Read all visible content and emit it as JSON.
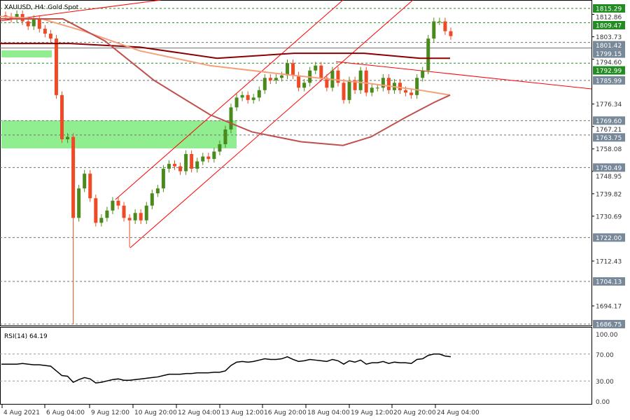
{
  "chart_data": {
    "type": "candlestick",
    "title": "XAUUSD, H4:  Gold Spot",
    "y_ticks": [
      "1812.86",
      "1803.73",
      "1794.60",
      "1776.34",
      "1767.21",
      "1758.08",
      "1748.95",
      "1739.82",
      "1730.69",
      "1712.43",
      "1694.17"
    ],
    "price_labels": [
      {
        "value": "1815.29",
        "color": "#228b22"
      },
      {
        "value": "1809.47",
        "color": "#228b22"
      },
      {
        "value": "1801.42",
        "color": "#778899"
      },
      {
        "value": "1799.15",
        "color": "#778899"
      },
      {
        "value": "1792.99",
        "color": "#228b22"
      },
      {
        "value": "1785.99",
        "color": "#778899"
      },
      {
        "value": "1769.60",
        "color": "#778899"
      },
      {
        "value": "1763.75",
        "color": "#778899"
      },
      {
        "value": "1750.49",
        "color": "#778899"
      },
      {
        "value": "1722.00",
        "color": "#778899"
      },
      {
        "value": "1704.13",
        "color": "#778899"
      },
      {
        "value": "1686.75",
        "color": "#778899"
      }
    ],
    "x_ticks": [
      "4 Aug 2021",
      "6 Aug 04:00",
      "9 Aug 12:00",
      "10 Aug 20:00",
      "12 Aug 04:00",
      "13 Aug 12:00",
      "16 Aug 20:00",
      "18 Aug 04:00",
      "19 Aug 12:00",
      "20 Aug 20:00",
      "24 Aug 04:00"
    ],
    "closes": [
      1812,
      1811,
      1813,
      1810,
      1808,
      1811,
      1807,
      1805,
      1803,
      1780,
      1762,
      1763,
      1730,
      1742,
      1748,
      1738,
      1728,
      1730,
      1733,
      1737,
      1735,
      1730,
      1729,
      1732,
      1729,
      1735,
      1740,
      1742,
      1750,
      1752,
      1751,
      1749,
      1756,
      1750,
      1753,
      1755,
      1754,
      1757,
      1760,
      1766,
      1775,
      1779,
      1780,
      1778,
      1779,
      1782,
      1787,
      1786,
      1787,
      1788,
      1793,
      1788,
      1783,
      1785,
      1790,
      1792,
      1787,
      1783,
      1790,
      1785,
      1778,
      1786,
      1782,
      1790,
      1781,
      1783,
      1783,
      1787,
      1782,
      1785,
      1782,
      1781,
      1780,
      1787,
      1790,
      1803,
      1810,
      1810,
      1806,
      1804
    ],
    "colors": {
      "bull": "#4a8a1c",
      "bear": "#f04a24",
      "ma_slow": "#8b0000",
      "ma_mid": "#f4a07a",
      "ma_fast": "#c0504d",
      "zone": "#90ee90",
      "trend": "#ff0000"
    },
    "rsi": {
      "label": "RSI(14) 64.19",
      "ticks": [
        "100.00",
        "70.00",
        "30.00",
        "0.00"
      ],
      "values": [
        55,
        55,
        55,
        56,
        55,
        54,
        54,
        53,
        52,
        45,
        38,
        37,
        28,
        32,
        35,
        33,
        27,
        28,
        30,
        32,
        33,
        31,
        31,
        32,
        33,
        34,
        35,
        36,
        38,
        40,
        40,
        40,
        41,
        41,
        42,
        42,
        42,
        43,
        43,
        45,
        53,
        58,
        59,
        58,
        59,
        61,
        63,
        62,
        62,
        63,
        66,
        62,
        59,
        60,
        62,
        61,
        60,
        59,
        62,
        60,
        55,
        60,
        58,
        61,
        55,
        57,
        57,
        59,
        56,
        58,
        57,
        57,
        56,
        62,
        63,
        68,
        70,
        70,
        67,
        66
      ]
    }
  }
}
